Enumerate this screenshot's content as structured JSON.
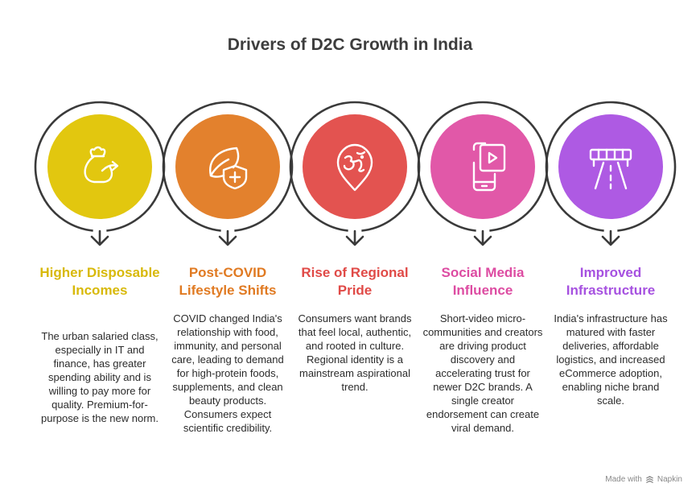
{
  "title": "Drivers of D2C Growth in India",
  "footer": {
    "made_with": "Made with",
    "brand": "Napkin"
  },
  "items": [
    {
      "heading": "Higher Disposable Incomes",
      "description": "The urban salaried class, especially in IT and finance, has greater spending ability and is willing to pay more for quality. Premium-for-purpose is the new norm.",
      "color": "#e2c70f",
      "heading_color": "#d8b90a",
      "icon": "money-bag-icon"
    },
    {
      "heading": "Post-COVID Lifestyle Shifts",
      "description": "COVID changed India's relationship with food, immunity, and personal care, leading to demand for high-protein foods, supplements, and clean beauty products. Consumers expect scientific credibility.",
      "color": "#e3812d",
      "heading_color": "#e07a22",
      "icon": "leaf-shield-icon"
    },
    {
      "heading": "Rise of Regional Pride",
      "description": "Consumers want brands that feel local, authentic, and rooted in culture. Regional identity is a mainstream aspirational trend.",
      "color": "#e35350",
      "heading_color": "#e04a47",
      "icon": "om-location-pin-icon"
    },
    {
      "heading": "Social Media Influence",
      "description": "Short-video micro-communities and creators are driving product discovery and accelerating trust for newer D2C brands. A single creator endorsement can create viral demand.",
      "color": "#e158a8",
      "heading_color": "#dd4ca2",
      "icon": "smartphone-video-icon"
    },
    {
      "heading": "Improved Infrastructure",
      "description": "India's infrastructure has matured with faster deliveries, affordable logistics, and increased eCommerce adoption, enabling niche brand scale.",
      "color": "#ae5ae3",
      "heading_color": "#a651e0",
      "icon": "highway-icon"
    }
  ]
}
